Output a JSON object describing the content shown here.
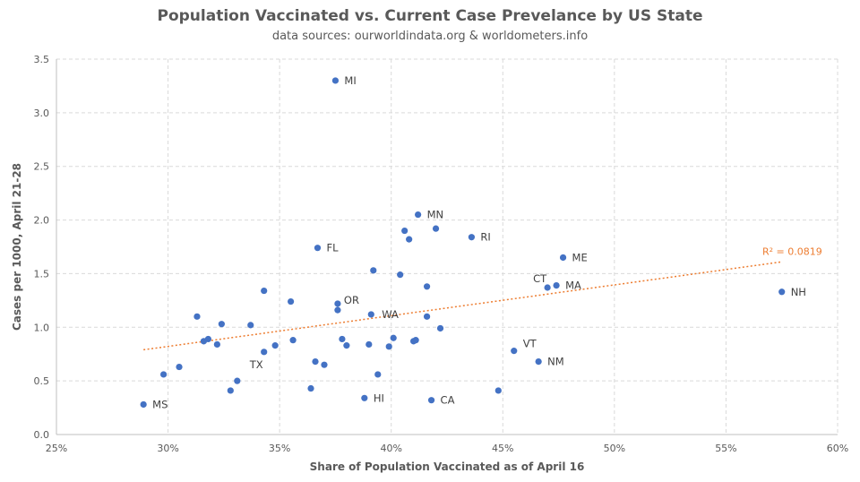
{
  "chart_data": {
    "type": "scatter",
    "title": "Population Vaccinated vs. Current Case Prevelance by US State",
    "subtitle": "data sources: ourworldindata.org & worldometers.info",
    "xlabel": "Share of Population Vaccinated as of April 16",
    "ylabel": "Cases per 1000, April 21-28",
    "xlim": [
      0.25,
      0.6
    ],
    "ylim": [
      0.0,
      3.5
    ],
    "x_ticks": [
      0.25,
      0.3,
      0.35,
      0.4,
      0.45,
      0.5,
      0.55,
      0.6
    ],
    "x_tick_labels": [
      "25%",
      "30%",
      "35%",
      "40%",
      "45%",
      "50%",
      "55%",
      "60%"
    ],
    "y_ticks": [
      0.0,
      0.5,
      1.0,
      1.5,
      2.0,
      2.5,
      3.0,
      3.5
    ],
    "y_tick_labels": [
      "0.0",
      "0.5",
      "1.0",
      "1.5",
      "2.0",
      "2.5",
      "3.0",
      "3.5"
    ],
    "grid": true,
    "marker_color": "#4472C4",
    "trendline_color": "#ED7D31",
    "trendline": {
      "x": [
        0.289,
        0.575
      ],
      "y": [
        0.79,
        1.61
      ],
      "label": "R² = 0.0819"
    },
    "points": [
      {
        "x": 0.375,
        "y": 3.3,
        "label": "MI"
      },
      {
        "x": 0.412,
        "y": 2.05,
        "label": "MN"
      },
      {
        "x": 0.406,
        "y": 1.9,
        "label": ""
      },
      {
        "x": 0.42,
        "y": 1.92,
        "label": ""
      },
      {
        "x": 0.408,
        "y": 1.82,
        "label": ""
      },
      {
        "x": 0.436,
        "y": 1.84,
        "label": "RI"
      },
      {
        "x": 0.367,
        "y": 1.74,
        "label": "FL"
      },
      {
        "x": 0.477,
        "y": 1.65,
        "label": "ME"
      },
      {
        "x": 0.392,
        "y": 1.53,
        "label": ""
      },
      {
        "x": 0.404,
        "y": 1.49,
        "label": ""
      },
      {
        "x": 0.47,
        "y": 1.37,
        "label": "CT"
      },
      {
        "x": 0.474,
        "y": 1.39,
        "label": "MA"
      },
      {
        "x": 0.575,
        "y": 1.33,
        "label": "NH"
      },
      {
        "x": 0.343,
        "y": 1.34,
        "label": ""
      },
      {
        "x": 0.416,
        "y": 1.38,
        "label": ""
      },
      {
        "x": 0.355,
        "y": 1.24,
        "label": ""
      },
      {
        "x": 0.376,
        "y": 1.22,
        "label": "OR"
      },
      {
        "x": 0.376,
        "y": 1.16,
        "label": ""
      },
      {
        "x": 0.391,
        "y": 1.12,
        "label": "WA"
      },
      {
        "x": 0.313,
        "y": 1.1,
        "label": ""
      },
      {
        "x": 0.416,
        "y": 1.1,
        "label": ""
      },
      {
        "x": 0.324,
        "y": 1.03,
        "label": ""
      },
      {
        "x": 0.337,
        "y": 1.02,
        "label": ""
      },
      {
        "x": 0.422,
        "y": 0.99,
        "label": ""
      },
      {
        "x": 0.316,
        "y": 0.87,
        "label": ""
      },
      {
        "x": 0.318,
        "y": 0.89,
        "label": ""
      },
      {
        "x": 0.322,
        "y": 0.84,
        "label": ""
      },
      {
        "x": 0.356,
        "y": 0.88,
        "label": ""
      },
      {
        "x": 0.378,
        "y": 0.89,
        "label": ""
      },
      {
        "x": 0.401,
        "y": 0.9,
        "label": ""
      },
      {
        "x": 0.411,
        "y": 0.88,
        "label": ""
      },
      {
        "x": 0.41,
        "y": 0.87,
        "label": ""
      },
      {
        "x": 0.348,
        "y": 0.83,
        "label": ""
      },
      {
        "x": 0.38,
        "y": 0.83,
        "label": ""
      },
      {
        "x": 0.39,
        "y": 0.84,
        "label": ""
      },
      {
        "x": 0.399,
        "y": 0.82,
        "label": ""
      },
      {
        "x": 0.343,
        "y": 0.77,
        "label": "TX"
      },
      {
        "x": 0.455,
        "y": 0.78,
        "label": "VT"
      },
      {
        "x": 0.466,
        "y": 0.68,
        "label": "NM"
      },
      {
        "x": 0.366,
        "y": 0.68,
        "label": ""
      },
      {
        "x": 0.37,
        "y": 0.65,
        "label": ""
      },
      {
        "x": 0.305,
        "y": 0.63,
        "label": ""
      },
      {
        "x": 0.298,
        "y": 0.56,
        "label": ""
      },
      {
        "x": 0.394,
        "y": 0.56,
        "label": ""
      },
      {
        "x": 0.331,
        "y": 0.5,
        "label": ""
      },
      {
        "x": 0.328,
        "y": 0.41,
        "label": ""
      },
      {
        "x": 0.364,
        "y": 0.43,
        "label": ""
      },
      {
        "x": 0.448,
        "y": 0.41,
        "label": ""
      },
      {
        "x": 0.388,
        "y": 0.34,
        "label": "HI"
      },
      {
        "x": 0.418,
        "y": 0.32,
        "label": "CA"
      },
      {
        "x": 0.289,
        "y": 0.28,
        "label": "MS"
      }
    ]
  }
}
